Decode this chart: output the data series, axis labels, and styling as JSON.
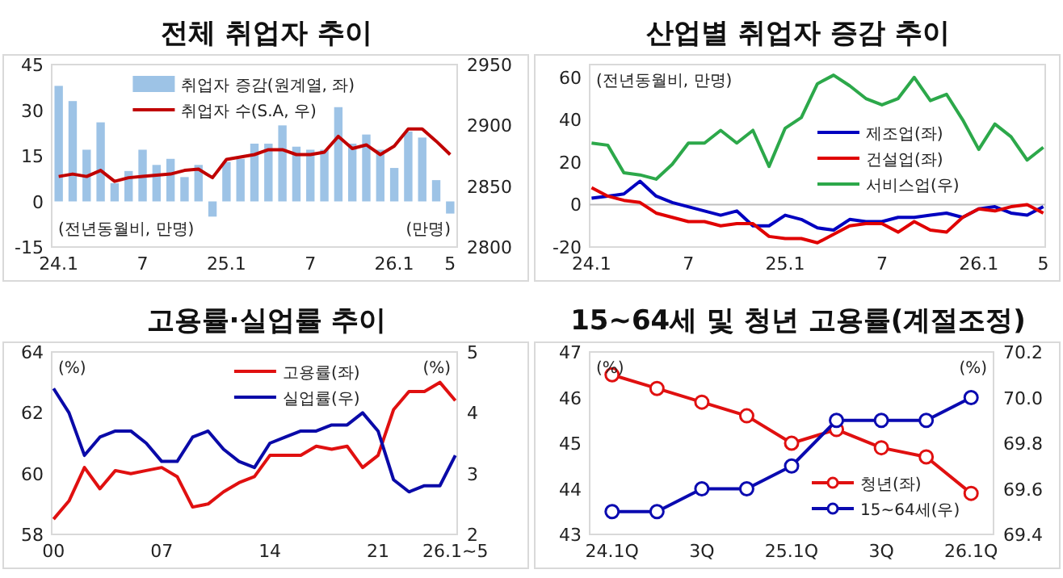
{
  "chart_data": [
    {
      "type": "bar",
      "title": "전체 취업자 추이",
      "categories": [
        "24.1",
        null,
        null,
        null,
        null,
        null,
        "7",
        null,
        null,
        null,
        null,
        null,
        "25.1",
        null,
        null,
        null,
        null,
        null,
        "7",
        null,
        null,
        null,
        null,
        null,
        "26.1",
        null,
        null,
        null,
        "5"
      ],
      "series": [
        {
          "name": "취업자 증감(원계열, 좌)",
          "color": "#9dc3e6",
          "values": [
            38,
            33,
            17,
            26,
            6,
            10,
            17,
            12,
            14,
            8,
            12,
            -5,
            13,
            14,
            19,
            19,
            25,
            18,
            17,
            17,
            31,
            19,
            22,
            17,
            11,
            23,
            21,
            7,
            -4
          ]
        },
        {
          "name": "취업자 수(S.A, 우)",
          "type": "line",
          "axis": "y2",
          "color": "#c00000",
          "values": [
            2858,
            2860,
            2858,
            2863,
            2854,
            2857,
            2858,
            2859,
            2860,
            2863,
            2864,
            2857,
            2872,
            2874,
            2876,
            2880,
            2880,
            2876,
            2876,
            2878,
            2891,
            2881,
            2884,
            2876,
            2883,
            2897,
            2897,
            2887,
            2876
          ]
        }
      ],
      "ylim": [
        -15,
        45
      ],
      "yticks": [
        -15,
        0,
        15,
        30,
        45
      ],
      "y2lim": [
        2800,
        2950
      ],
      "y2ticks": [
        2800,
        2850,
        2900,
        2950
      ],
      "legend": "top",
      "annotations": [
        "(전년동월비, 만명)",
        "(만명)"
      ]
    },
    {
      "type": "line",
      "title": "산업별 취업자 증감 추이",
      "categories": [
        "24.1",
        null,
        null,
        null,
        null,
        null,
        "7",
        null,
        null,
        null,
        null,
        null,
        "25.1",
        null,
        null,
        null,
        null,
        null,
        "7",
        null,
        null,
        null,
        null,
        null,
        "26.1",
        null,
        null,
        null,
        "5"
      ],
      "series": [
        {
          "name": "제조업(좌)",
          "color": "#0000c0",
          "values": [
            3,
            4,
            5,
            11,
            4,
            1,
            -1,
            -3,
            -5,
            -3,
            -10,
            -10,
            -5,
            -7,
            -11,
            -12,
            -7,
            -8,
            -8,
            -6,
            -6,
            -5,
            -4,
            -6,
            -2,
            -1,
            -4,
            -5,
            -1
          ]
        },
        {
          "name": "건설업(좌)",
          "color": "#e00000",
          "values": [
            8,
            4,
            2,
            1,
            -4,
            -6,
            -8,
            -8,
            -10,
            -9,
            -9,
            -15,
            -16,
            -16,
            -18,
            -14,
            -10,
            -9,
            -9,
            -13,
            -8,
            -12,
            -13,
            -6,
            -2,
            -3,
            -1,
            0,
            -4
          ]
        },
        {
          "name": "서비스업(우)",
          "color": "#2ca84a",
          "values": [
            29,
            28,
            15,
            14,
            12,
            19,
            29,
            29,
            35,
            29,
            35,
            18,
            36,
            41,
            57,
            61,
            56,
            50,
            47,
            50,
            60,
            49,
            52,
            40,
            26,
            38,
            32,
            21,
            27
          ]
        }
      ],
      "ylim": [
        -20,
        66
      ],
      "yticks": [
        -20,
        0,
        20,
        40,
        60
      ],
      "ref_lines": [
        {
          "axis": "y",
          "value": 0,
          "color": "#bfbfbf"
        }
      ],
      "legend": "right",
      "annotations": [
        "(전년동월비, 만명)"
      ]
    },
    {
      "type": "line",
      "title": "고용률·실업률 추이",
      "categories": [
        "00",
        null,
        null,
        null,
        null,
        null,
        null,
        "07",
        null,
        null,
        null,
        null,
        null,
        null,
        "14",
        null,
        null,
        null,
        null,
        null,
        null,
        "21",
        null,
        null,
        null,
        null,
        "26.1~5"
      ],
      "series": [
        {
          "name": "고용률(좌)",
          "color": "#e01010",
          "values": [
            58.5,
            59.1,
            60.2,
            59.5,
            60.1,
            60.0,
            60.1,
            60.2,
            59.9,
            58.9,
            59.0,
            59.4,
            59.7,
            59.9,
            60.6,
            60.6,
            60.6,
            60.9,
            60.8,
            60.9,
            60.2,
            60.6,
            62.1,
            62.7,
            62.7,
            63.0,
            62.4
          ]
        },
        {
          "name": "실업률(우)",
          "axis": "y2",
          "color": "#0a0aa8",
          "values": [
            4.4,
            4.0,
            3.3,
            3.6,
            3.7,
            3.7,
            3.5,
            3.2,
            3.2,
            3.6,
            3.7,
            3.4,
            3.2,
            3.1,
            3.5,
            3.6,
            3.7,
            3.7,
            3.8,
            3.8,
            4.0,
            3.7,
            2.9,
            2.7,
            2.8,
            2.8,
            3.3
          ]
        }
      ],
      "ylim": [
        58,
        64
      ],
      "yticks": [
        58,
        60,
        62,
        64
      ],
      "y2lim": [
        2,
        5
      ],
      "y2ticks": [
        2,
        3,
        4,
        5
      ],
      "legend": "top",
      "annotations": [
        "(%)",
        "(%)"
      ]
    },
    {
      "type": "line",
      "title": "15~64세 및 청년 고용률(계절조정)",
      "categories": [
        "24.1Q",
        null,
        "3Q",
        null,
        "25.1Q",
        null,
        "3Q",
        null,
        "26.1Q"
      ],
      "marker": "circle",
      "series": [
        {
          "name": "청년(좌)",
          "color": "#e01010",
          "values": [
            46.5,
            46.2,
            45.9,
            45.6,
            45.0,
            45.3,
            44.9,
            44.7,
            43.9
          ]
        },
        {
          "name": "15~64세(우)",
          "axis": "y2",
          "color": "#0a0ab0",
          "values": [
            69.5,
            69.5,
            69.6,
            69.6,
            69.7,
            69.9,
            69.9,
            69.9,
            70.0
          ]
        }
      ],
      "ylim": [
        43,
        47
      ],
      "yticks": [
        43,
        44,
        45,
        46,
        47
      ],
      "y2lim": [
        69.4,
        70.2
      ],
      "y2ticks": [
        69.4,
        69.6,
        69.8,
        {
          "value": 70,
          "label": "70.0"
        },
        70.2
      ],
      "legend": "bottom right",
      "annotations": [
        "(%)",
        "(%)"
      ]
    }
  ]
}
